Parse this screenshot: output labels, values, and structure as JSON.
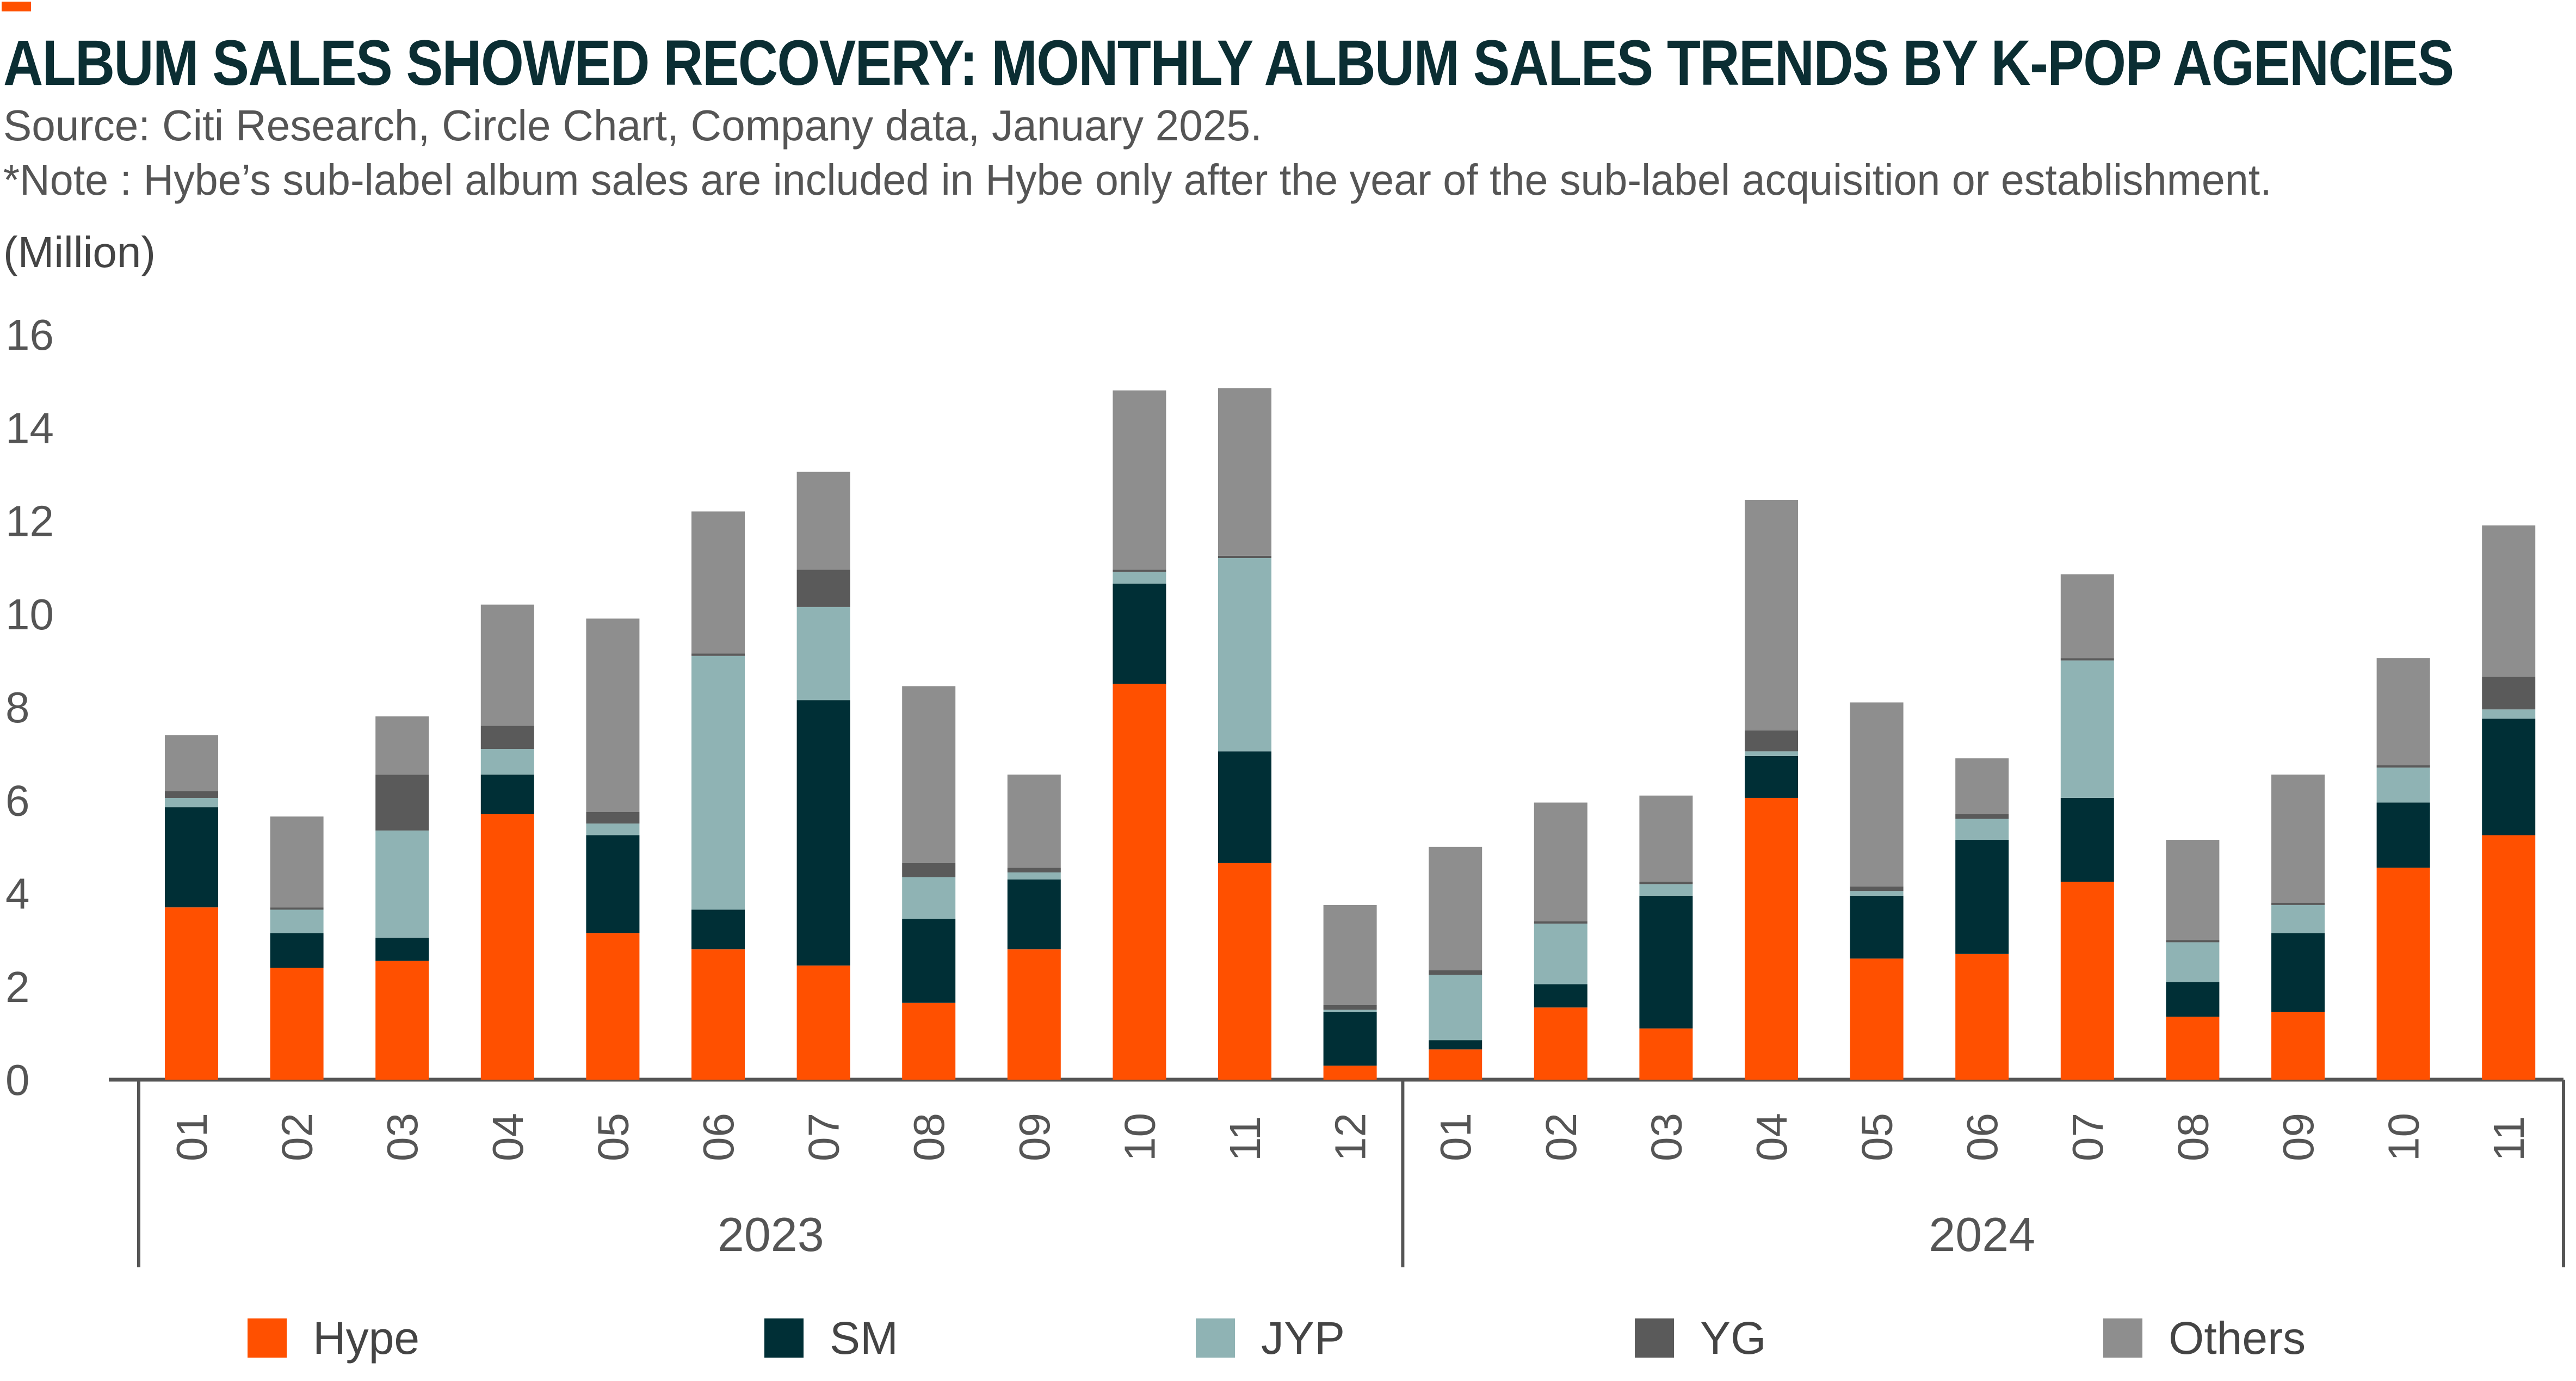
{
  "header": {
    "title": "ALBUM SALES SHOWED RECOVERY: MONTHLY ALBUM SALES TRENDS BY K-POP AGENCIES",
    "source": "Source: Citi Research, Circle Chart, Company data, January 2025.",
    "note": "*Note  : Hybe’s sub-label album sales are included in Hybe only after the year of the sub-label acquisition or establishment.",
    "unit": "(Million)"
  },
  "colors": {
    "accent": "#FF5000",
    "Hype": "#FF5000",
    "SM": "#002F36",
    "JYP": "#8FB3B4",
    "YG": "#5A5A5A",
    "Others": "#8E8E8E"
  },
  "chart_data": {
    "type": "bar",
    "stacked": true,
    "ylim": [
      0,
      16
    ],
    "yticks": [
      0,
      2,
      4,
      6,
      8,
      10,
      12,
      14,
      16
    ],
    "ylabel": "(Million)",
    "groups": [
      {
        "label": "2023",
        "months": [
          "01",
          "02",
          "03",
          "04",
          "05",
          "06",
          "07",
          "08",
          "09",
          "10",
          "11",
          "12"
        ]
      },
      {
        "label": "2024",
        "months": [
          "01",
          "02",
          "03",
          "04",
          "05",
          "06",
          "07",
          "08",
          "09",
          "10",
          "11"
        ]
      }
    ],
    "series": [
      {
        "name": "Hype",
        "values": [
          3.7,
          2.4,
          2.55,
          5.7,
          3.15,
          2.8,
          2.45,
          1.65,
          2.8,
          8.5,
          4.65,
          0.3,
          0.65,
          1.55,
          1.1,
          6.05,
          2.6,
          2.7,
          4.25,
          1.35,
          1.45,
          4.55,
          5.25
        ]
      },
      {
        "name": "SM",
        "values": [
          2.15,
          0.75,
          0.5,
          0.85,
          2.1,
          0.85,
          5.7,
          1.8,
          1.5,
          2.15,
          2.4,
          1.15,
          0.2,
          0.5,
          2.85,
          0.9,
          1.35,
          2.45,
          1.8,
          0.75,
          1.7,
          1.4,
          2.5
        ]
      },
      {
        "name": "JYP",
        "values": [
          0.2,
          0.5,
          2.3,
          0.55,
          0.25,
          5.45,
          2.0,
          0.9,
          0.15,
          0.25,
          4.15,
          0.05,
          1.4,
          1.3,
          0.25,
          0.1,
          0.1,
          0.45,
          2.95,
          0.85,
          0.6,
          0.75,
          0.2
        ]
      },
      {
        "name": "YG",
        "values": [
          0.15,
          0.05,
          1.2,
          0.5,
          0.25,
          0.05,
          0.8,
          0.3,
          0.1,
          0.05,
          0.05,
          0.1,
          0.1,
          0.05,
          0.05,
          0.45,
          0.1,
          0.1,
          0.05,
          0.05,
          0.05,
          0.05,
          0.7
        ]
      },
      {
        "name": "Others",
        "values": [
          1.2,
          1.95,
          1.25,
          2.6,
          4.15,
          3.05,
          2.1,
          3.8,
          2.0,
          3.85,
          3.6,
          2.15,
          2.65,
          2.55,
          1.85,
          4.95,
          3.95,
          1.2,
          1.8,
          2.15,
          2.75,
          2.3,
          3.25
        ]
      }
    ]
  }
}
